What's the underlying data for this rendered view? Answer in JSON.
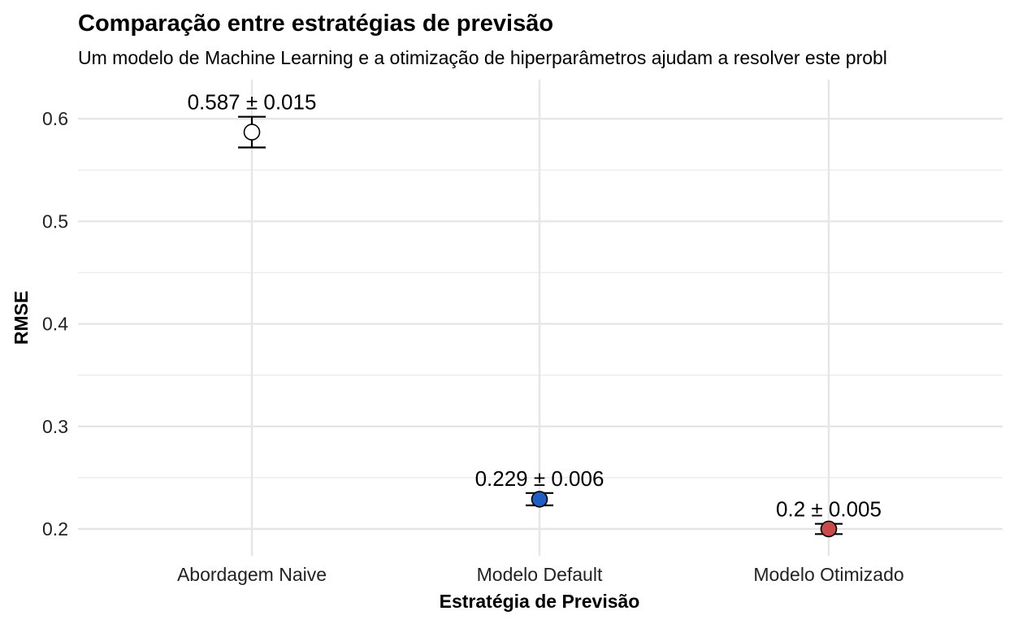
{
  "chart_data": {
    "type": "scatter",
    "title": "Comparação entre estratégias de previsão",
    "subtitle": "Um modelo de Machine Learning e a otimização de hiperparâmetros ajudam a resolver este probl",
    "xlabel": "Estratégia de Previsão",
    "ylabel": "RMSE",
    "categories": [
      "Abordagem Naive",
      "Modelo Default",
      "Modelo Otimizado"
    ],
    "values": [
      0.587,
      0.229,
      0.2
    ],
    "errors": [
      0.015,
      0.006,
      0.005
    ],
    "data_labels": [
      "0.587 ± 0.015",
      "0.229 ± 0.006",
      "0.2 ± 0.005"
    ],
    "point_colors": [
      "#ffffff",
      "#1f5fc4",
      "#c84b4b"
    ],
    "y_ticks": [
      "0.2",
      "0.3",
      "0.4",
      "0.5",
      "0.6"
    ],
    "y_tick_values": [
      0.2,
      0.3,
      0.4,
      0.5,
      0.6
    ],
    "ylim": [
      0.172,
      0.64
    ],
    "grid": true,
    "legend": "none"
  }
}
